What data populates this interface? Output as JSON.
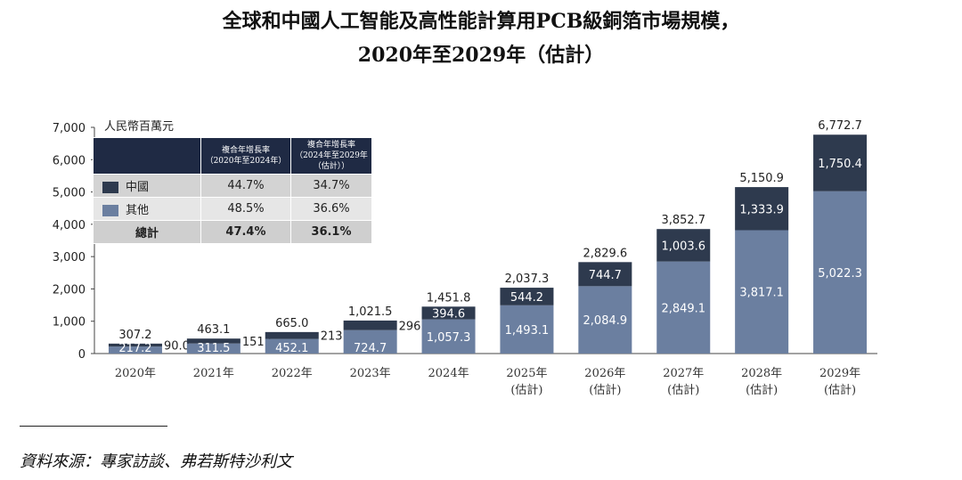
{
  "title_line1": "全球和中國人工智能及高性能計算用PCB級銅箔市場規模，",
  "title_line2": "2020年至2029年（估計）",
  "source": "資料來源：專家訪談、弗若斯特沙利文",
  "colors": {
    "china": "#2e3a4e",
    "other": "#6b7fa0",
    "header": "#1f2a44"
  },
  "table": {
    "headers": [
      "",
      "複合年增長率\n（2020年至2024年）",
      "複合年增長率\n（2024年至2029年\n（估計））"
    ],
    "rows": [
      {
        "label": "中國",
        "c1": "44.7%",
        "c2": "34.7%"
      },
      {
        "label": "其他",
        "c1": "48.5%",
        "c2": "36.6%"
      },
      {
        "label": "總計",
        "c1": "47.4%",
        "c2": "36.1%"
      }
    ]
  },
  "chart_data": {
    "type": "bar",
    "stacked": true,
    "unit_label": "人民幣百萬元",
    "ylim": [
      0,
      7000
    ],
    "yticks": [
      "0",
      "1,000",
      "2,000",
      "3,000",
      "4,000",
      "5,000",
      "6,000",
      "7,000"
    ],
    "ytick_values": [
      0,
      1000,
      2000,
      3000,
      4000,
      5000,
      6000,
      7000
    ],
    "categories": [
      "2020年",
      "2021年",
      "2022年",
      "2023年",
      "2024年",
      "2025年",
      "2026年",
      "2027年",
      "2028年",
      "2029年"
    ],
    "category_sub": [
      "",
      "",
      "",
      "",
      "",
      "(估計)",
      "(估計)",
      "(估計)",
      "(估計)",
      "(估計)"
    ],
    "series": [
      {
        "name": "其他",
        "values": [
          217.2,
          311.5,
          452.1,
          724.7,
          1057.3,
          1493.1,
          2084.9,
          2849.1,
          3817.1,
          5022.3
        ],
        "labels": [
          "217.2",
          "311.5",
          "452.1",
          "724.7",
          "1,057.3",
          "1,493.1",
          "2,084.9",
          "2,849.1",
          "3,817.1",
          "5,022.3"
        ]
      },
      {
        "name": "中國",
        "values": [
          90.0,
          151.6,
          213.0,
          296.8,
          394.6,
          544.2,
          744.7,
          1003.6,
          1333.9,
          1750.4
        ],
        "labels": [
          "90.0",
          "151.6",
          "213.0",
          "296.8",
          "394.6",
          "544.2",
          "744.7",
          "1,003.6",
          "1,333.9",
          "1,750.4"
        ]
      }
    ],
    "totals": [
      "307.2",
      "463.1",
      "665.0",
      "1,021.5",
      "1,451.8",
      "2,037.3",
      "2,829.6",
      "3,852.7",
      "5,150.9",
      "6,772.7"
    ]
  }
}
